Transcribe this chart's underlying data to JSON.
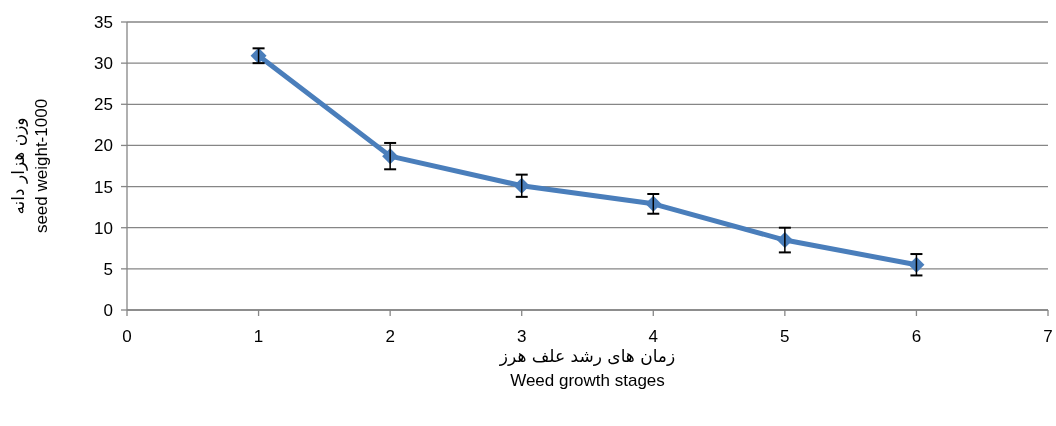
{
  "chart_data": {
    "type": "line",
    "xlabel": [
      "زمان های رشد علف هرز",
      "Weed growth stages"
    ],
    "ylabel": [
      "وزن هزار دانه",
      "seed weight-1000"
    ],
    "x": [
      1,
      2,
      3,
      4,
      5,
      6
    ],
    "series": [
      {
        "color": "#4a7ebb",
        "values": [
          30.9,
          18.7,
          15.1,
          12.9,
          8.5,
          5.5
        ],
        "errors": [
          0.9,
          1.6,
          1.35,
          1.2,
          1.5,
          1.3
        ]
      }
    ],
    "xlim": [
      0,
      7
    ],
    "xticks": [
      0,
      1,
      2,
      3,
      4,
      5,
      6,
      7
    ],
    "ylim": [
      0,
      35
    ],
    "yticks": [
      0,
      5,
      10,
      15,
      20,
      25,
      30,
      35
    ],
    "grid": "y",
    "marker": "diamond",
    "line_style": "solid"
  }
}
